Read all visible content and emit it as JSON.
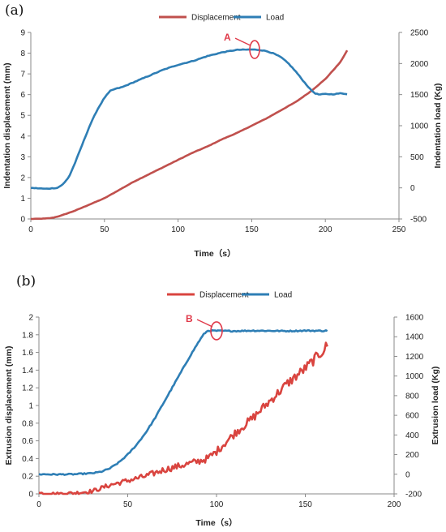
{
  "chart_data": [
    {
      "panel_label": "(a)",
      "type": "line",
      "xlabel": "Time（s）",
      "ylabel_left": "Indentation displacement (mm)",
      "ylabel_right": "Indentation load (Kg)",
      "xlim": [
        0,
        250
      ],
      "xticks": [
        "0",
        "50",
        "100",
        "150",
        "200",
        "250"
      ],
      "ylim_left": [
        0,
        9
      ],
      "yticks_left": [
        "0",
        "1",
        "2",
        "3",
        "4",
        "5",
        "6",
        "7",
        "8",
        "9"
      ],
      "ylim_right": [
        -500,
        2500
      ],
      "yticks_right": [
        "-500",
        "0",
        "500",
        "1000",
        "1500",
        "2000",
        "2500"
      ],
      "legend": [
        "Displacement",
        "Load"
      ],
      "legend_position": "top",
      "grid": false,
      "annotation": {
        "label": "A",
        "x": 152,
        "y_right": 2225
      },
      "series": [
        {
          "name": "Displacement",
          "axis": "left",
          "color": "#c0504d",
          "x": [
            0,
            10,
            15,
            20,
            30,
            40,
            50,
            60,
            70,
            80,
            90,
            100,
            110,
            120,
            130,
            140,
            150,
            160,
            170,
            180,
            190,
            200,
            210,
            215
          ],
          "y": [
            0.0,
            0.02,
            0.06,
            0.15,
            0.4,
            0.7,
            1.0,
            1.4,
            1.8,
            2.15,
            2.5,
            2.85,
            3.2,
            3.5,
            3.85,
            4.15,
            4.5,
            4.85,
            5.25,
            5.65,
            6.15,
            6.75,
            7.55,
            8.15
          ]
        },
        {
          "name": "Load",
          "axis": "right",
          "color": "#2e7eb5",
          "x": [
            0,
            10,
            18,
            22,
            26,
            30,
            35,
            40,
            45,
            50,
            54,
            57,
            62,
            70,
            80,
            90,
            100,
            110,
            120,
            130,
            140,
            150,
            155,
            160,
            165,
            170,
            175,
            180,
            185,
            190,
            193,
            196,
            200,
            205,
            210,
            215
          ],
          "y": [
            0,
            -15,
            0,
            60,
            180,
            400,
            700,
            1000,
            1250,
            1450,
            1560,
            1590,
            1620,
            1700,
            1800,
            1900,
            1980,
            2040,
            2120,
            2180,
            2220,
            2225,
            2220,
            2200,
            2160,
            2100,
            2000,
            1870,
            1720,
            1580,
            1520,
            1500,
            1510,
            1505,
            1520,
            1510
          ]
        }
      ]
    },
    {
      "panel_label": "(b)",
      "type": "line",
      "xlabel": "Time（s）",
      "ylabel_left": "Extrusion displacement (mm)",
      "ylabel_right": "Extrusion load (Kg)",
      "xlim": [
        0,
        200
      ],
      "xticks": [
        "0",
        "50",
        "100",
        "150",
        "200"
      ],
      "ylim_left": [
        0,
        2
      ],
      "yticks_left": [
        "0",
        "0.2",
        "0.4",
        "0.6",
        "0.8",
        "1",
        "1.2",
        "1.4",
        "1.6",
        "1.8",
        "2"
      ],
      "ylim_right": [
        -200,
        1600
      ],
      "yticks_right": [
        "-200",
        "0",
        "200",
        "400",
        "600",
        "800",
        "1000",
        "1200",
        "1400",
        "1600"
      ],
      "legend": [
        "Displacement",
        "Load"
      ],
      "legend_position": "top",
      "grid": false,
      "annotation": {
        "label": "B",
        "x": 100,
        "y_right": 1460
      },
      "series": [
        {
          "name": "Displacement",
          "axis": "left",
          "color": "#d9443f",
          "x": [
            0,
            10,
            20,
            30,
            40,
            50,
            60,
            70,
            80,
            90,
            95,
            100,
            105,
            110,
            120,
            130,
            140,
            150,
            160,
            163
          ],
          "y": [
            0.01,
            0.0,
            0.01,
            0.03,
            0.1,
            0.15,
            0.2,
            0.27,
            0.32,
            0.37,
            0.4,
            0.48,
            0.58,
            0.68,
            0.85,
            1.05,
            1.25,
            1.42,
            1.62,
            1.7
          ]
        },
        {
          "name": "Load",
          "axis": "right",
          "color": "#2e7eb5",
          "x": [
            0,
            10,
            20,
            30,
            35,
            40,
            45,
            50,
            55,
            60,
            65,
            70,
            75,
            80,
            85,
            90,
            93,
            95,
            97,
            100,
            110,
            120,
            130,
            140,
            150,
            160,
            163
          ],
          "y": [
            0,
            -2,
            0,
            10,
            25,
            60,
            120,
            200,
            300,
            420,
            560,
            720,
            880,
            1040,
            1200,
            1350,
            1430,
            1460,
            1462,
            1460,
            1458,
            1462,
            1460,
            1458,
            1462,
            1460,
            1462
          ]
        }
      ]
    }
  ]
}
